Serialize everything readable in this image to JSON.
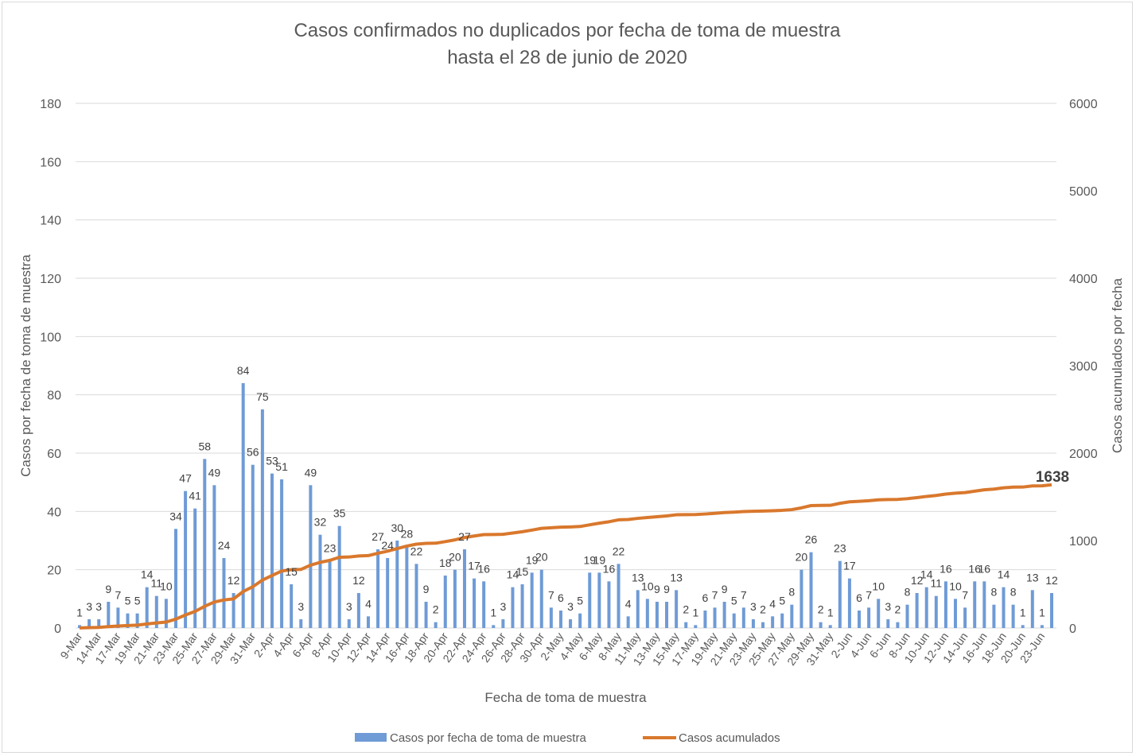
{
  "chart_data": {
    "type": "bar+line",
    "title": [
      "Casos confirmados no duplicados por fecha de toma de muestra",
      "hasta el 28 de junio de 2020"
    ],
    "xlabel": "Fecha de toma de muestra",
    "ylabel_left": "Casos por fecha de toma de muestra",
    "ylabel_right": "Casos acumulados por fecha",
    "ylim_left": [
      0,
      180
    ],
    "yticks_left": [
      0,
      20,
      40,
      60,
      80,
      100,
      120,
      140,
      160,
      180
    ],
    "ylim_right": [
      0,
      6000
    ],
    "yticks_right": [
      0,
      1000,
      2000,
      3000,
      4000,
      5000,
      6000
    ],
    "grid": true,
    "legend_position": "bottom",
    "tick_labels": [
      "9-Mar",
      "",
      "14-Mar",
      "",
      "17-Mar",
      "",
      "19-Mar",
      "",
      "21-Mar",
      "",
      "23-Mar",
      "",
      "25-Mar",
      "",
      "27-Mar",
      "",
      "29-Mar",
      "",
      "31-Mar",
      "",
      "2-Apr",
      "",
      "4-Apr",
      "",
      "6-Apr",
      "",
      "8-Apr",
      "",
      "10-Apr",
      "",
      "12-Apr",
      "",
      "14-Apr",
      "",
      "16-Apr",
      "",
      "18-Apr",
      "",
      "20-Apr",
      "",
      "22-Apr",
      "",
      "24-Apr",
      "",
      "26-Apr",
      "",
      "28-Apr",
      "",
      "30-Apr",
      "",
      "2-May",
      "",
      "4-May",
      "",
      "6-May",
      "",
      "8-May",
      "",
      "11-May",
      "",
      "13-May",
      "",
      "15-May",
      "",
      "17-May",
      "",
      "19-May",
      "",
      "21-May",
      "",
      "23-May",
      "",
      "25-May",
      "",
      "27-May",
      "",
      "29-May",
      "",
      "31-May",
      "",
      "2-Jun",
      "",
      "4-Jun",
      "",
      "6-Jun",
      "",
      "8-Jun",
      "",
      "10-Jun",
      "",
      "12-Jun",
      "",
      "14-Jun",
      "",
      "16-Jun",
      "",
      "18-Jun",
      "",
      "20-Jun",
      "",
      "23-Jun",
      ""
    ],
    "series": [
      {
        "name": "Casos por fecha de toma de muestra",
        "type": "bar",
        "axis": "left",
        "color": "#6f9bd6",
        "values": [
          1,
          3,
          3,
          9,
          7,
          5,
          5,
          14,
          11,
          10,
          34,
          47,
          41,
          58,
          49,
          24,
          12,
          84,
          56,
          75,
          53,
          51,
          15,
          3,
          49,
          32,
          23,
          35,
          3,
          12,
          4,
          27,
          24,
          30,
          28,
          22,
          9,
          2,
          18,
          20,
          27,
          17,
          16,
          1,
          3,
          14,
          15,
          19,
          20,
          7,
          6,
          3,
          5,
          19,
          19,
          16,
          22,
          4,
          13,
          10,
          9,
          9,
          13,
          2,
          1,
          6,
          7,
          9,
          5,
          7,
          3,
          2,
          4,
          5,
          8,
          20,
          26,
          2,
          1,
          23,
          17,
          6,
          7,
          10,
          3,
          2,
          8,
          12,
          14,
          11,
          16,
          10,
          7,
          16,
          16,
          8,
          14,
          8,
          1,
          13,
          1,
          12
        ]
      },
      {
        "name": "Casos acumulados",
        "type": "line",
        "axis": "right",
        "color": "#d9782d",
        "final_value": 1638,
        "final_label": "1638"
      }
    ]
  }
}
